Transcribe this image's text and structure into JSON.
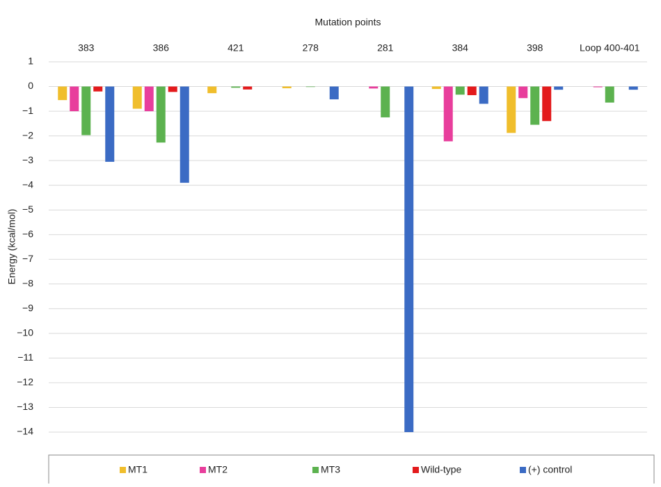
{
  "chart_data": {
    "type": "bar",
    "title": "Mutation points",
    "y_label": "Energy (kcal/mol)",
    "categories": [
      "383",
      "386",
      "421",
      "278",
      "281",
      "384",
      "398",
      "Loop 400-401"
    ],
    "series": [
      {
        "name": "MT1",
        "color": "#f0be2c",
        "values": [
          -0.55,
          -0.9,
          -0.27,
          -0.07,
          0,
          -0.1,
          -1.88,
          0
        ]
      },
      {
        "name": "MT2",
        "color": "#e83e9c",
        "values": [
          -1.0,
          -1.0,
          0,
          0,
          -0.08,
          -2.22,
          -0.47,
          -0.03
        ]
      },
      {
        "name": "MT3",
        "color": "#5cb24f",
        "values": [
          -1.97,
          -2.27,
          -0.05,
          -0.02,
          -1.25,
          -0.33,
          -1.55,
          -0.65
        ]
      },
      {
        "name": "Wild-type",
        "color": "#e31a1c",
        "values": [
          -0.2,
          -0.22,
          -0.12,
          0,
          0,
          -0.35,
          -1.4,
          0
        ]
      },
      {
        "name": "(+) control",
        "color": "#3b6bc4",
        "values": [
          -3.05,
          -3.9,
          0,
          -0.52,
          -14,
          -0.7,
          -0.13,
          -0.13
        ]
      }
    ],
    "ylim": [
      -14,
      1
    ],
    "yticks": [
      1,
      0,
      {
        "value": -1,
        "label": "−1"
      },
      {
        "value": -2,
        "label": "−2"
      },
      {
        "value": -3,
        "label": "−3"
      },
      {
        "value": -4,
        "label": "−4"
      },
      {
        "value": -5,
        "label": "−5"
      },
      {
        "value": -6,
        "label": "−6"
      },
      {
        "value": -7,
        "label": "−7"
      },
      {
        "value": -8,
        "label": "−8"
      },
      {
        "value": -9,
        "label": "−9"
      },
      {
        "value": -10,
        "label": "−10"
      },
      {
        "value": -11,
        "label": "−11"
      },
      {
        "value": -12,
        "label": "−12"
      },
      {
        "value": -13,
        "label": "−13"
      },
      {
        "value": -14,
        "label": "−14"
      }
    ],
    "grid": true,
    "legend": "bottom"
  }
}
